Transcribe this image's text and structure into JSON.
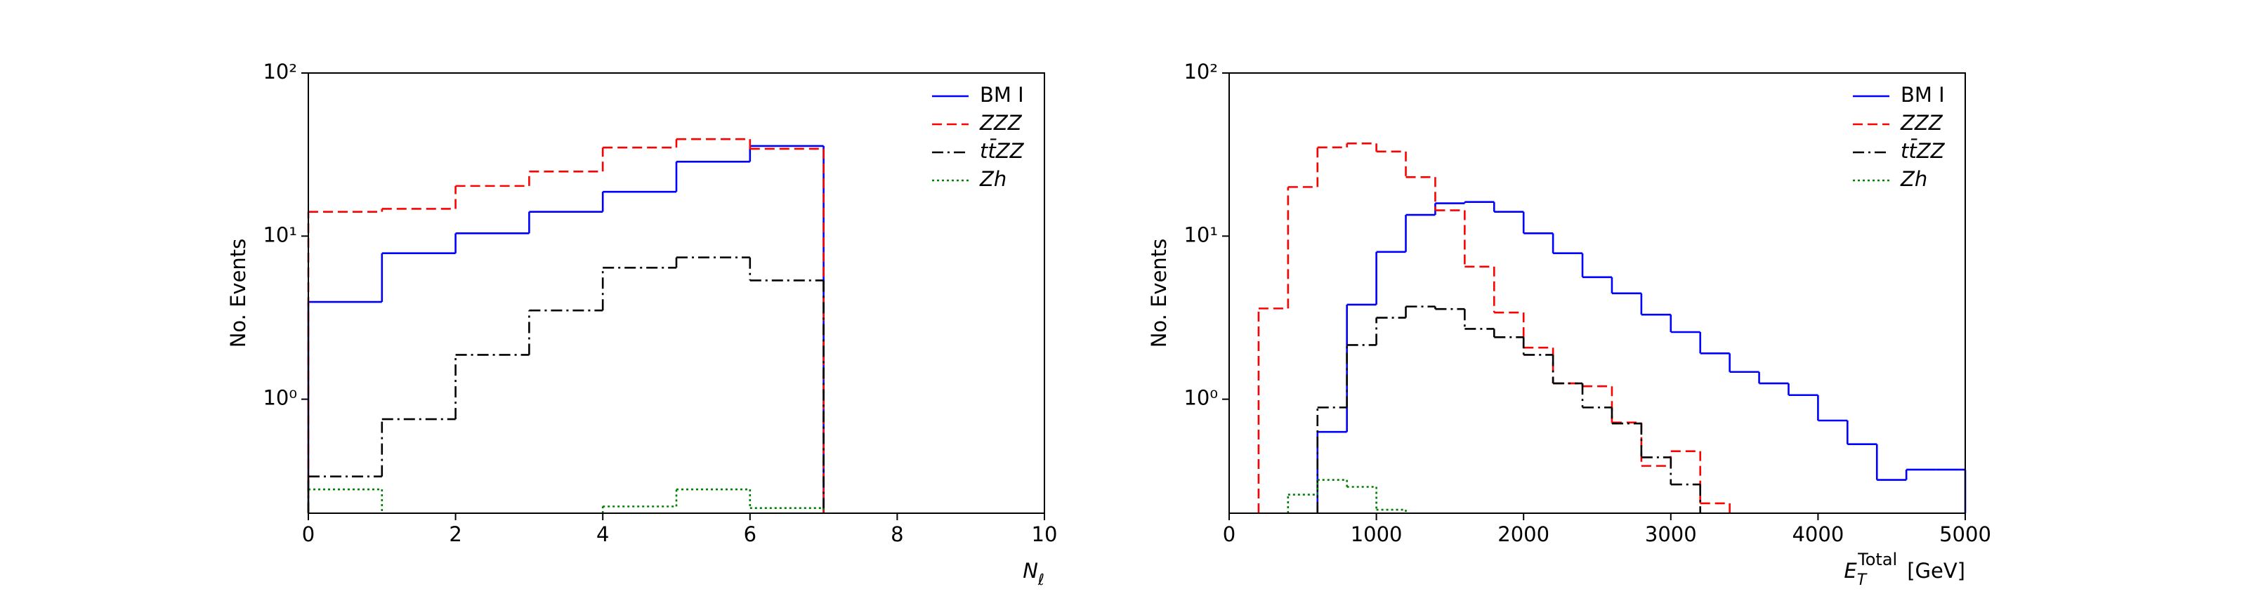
{
  "chart_data": [
    {
      "type": "histogram",
      "ylabel": "No. Events",
      "xlabel": {
        "base": "N",
        "sub": "ℓ"
      },
      "bins": [
        0,
        1,
        2,
        3,
        4,
        5,
        6,
        7
      ],
      "xlim": [
        0,
        10
      ],
      "xticks": [
        0,
        2,
        4,
        6,
        8,
        10
      ],
      "ylim": [
        0.2,
        100
      ],
      "log_y": true,
      "yticks": [
        {
          "value": 1,
          "label": "10⁰"
        },
        {
          "value": 10,
          "label": "10¹"
        },
        {
          "value": 100,
          "label": "10²"
        }
      ],
      "legend": "upper right",
      "series": [
        {
          "name": "BM I",
          "color": "#0000ff",
          "style": "solid",
          "values": [
            3.95,
            7.85,
            10.4,
            14.1,
            18.7,
            28.6,
            35.7
          ]
        },
        {
          "name": "ZZZ",
          "color": "#ff0000",
          "style": "dashed",
          "values": [
            14.1,
            14.7,
            20.3,
            24.9,
            34.9,
            39.3,
            34.3
          ]
        },
        {
          "name": "tt̄ZZ",
          "color": "#000000",
          "style": "dashdot",
          "values": [
            0.336,
            0.754,
            1.87,
            3.5,
            6.4,
            7.4,
            5.35
          ]
        },
        {
          "name": "Zh",
          "color": "#008000",
          "style": "dotted",
          "values": [
            0.28,
            null,
            null,
            null,
            0.22,
            0.28,
            0.215
          ]
        }
      ]
    },
    {
      "type": "histogram",
      "ylabel": "No. Events",
      "xlabel": {
        "base": "E",
        "sub": "T",
        "sup": "Total",
        "unit": "[GeV]"
      },
      "bins": [
        0,
        200,
        400,
        600,
        800,
        1000,
        1200,
        1400,
        1600,
        1800,
        2000,
        2200,
        2400,
        2600,
        2800,
        3000,
        3200,
        3400,
        3600,
        3800,
        4000,
        4200,
        4400,
        4600,
        4800,
        5000
      ],
      "xlim": [
        0,
        5000
      ],
      "xticks": [
        0,
        1000,
        2000,
        3000,
        4000,
        5000
      ],
      "ylim": [
        0.2,
        100
      ],
      "log_y": true,
      "yticks": [
        {
          "value": 1,
          "label": "10⁰"
        },
        {
          "value": 10,
          "label": "10¹"
        },
        {
          "value": 100,
          "label": "10²"
        }
      ],
      "legend": "upper right",
      "series": [
        {
          "name": "BM I",
          "color": "#0000ff",
          "style": "solid",
          "values": [
            null,
            null,
            null,
            0.63,
            3.8,
            8.0,
            13.5,
            15.9,
            16.2,
            14.1,
            10.4,
            7.85,
            5.6,
            4.46,
            3.3,
            2.58,
            1.91,
            1.47,
            1.25,
            1.06,
            0.74,
            0.53,
            0.32,
            0.37,
            0.37
          ]
        },
        {
          "name": "ZZZ",
          "color": "#ff0000",
          "style": "dashed",
          "values": [
            null,
            3.6,
            20,
            35,
            37,
            33,
            23,
            14.4,
            6.5,
            3.4,
            2.07,
            1.25,
            1.2,
            0.72,
            0.39,
            0.48,
            0.23,
            null,
            null,
            null,
            null,
            null,
            null,
            null,
            null
          ]
        },
        {
          "name": "tt̄ZZ",
          "color": "#000000",
          "style": "dashdot",
          "values": [
            null,
            null,
            null,
            0.89,
            2.15,
            3.16,
            3.7,
            3.57,
            2.7,
            2.4,
            1.87,
            1.25,
            0.89,
            0.71,
            0.44,
            0.3,
            null,
            null,
            null,
            null,
            null,
            null,
            null,
            null,
            null
          ]
        },
        {
          "name": "Zh",
          "color": "#008000",
          "style": "dotted",
          "values": [
            null,
            null,
            0.26,
            0.32,
            0.29,
            0.21,
            null,
            null,
            null,
            null,
            null,
            null,
            null,
            null,
            null,
            null,
            null,
            null,
            null,
            null,
            null,
            null,
            null,
            null,
            null
          ]
        }
      ]
    }
  ]
}
